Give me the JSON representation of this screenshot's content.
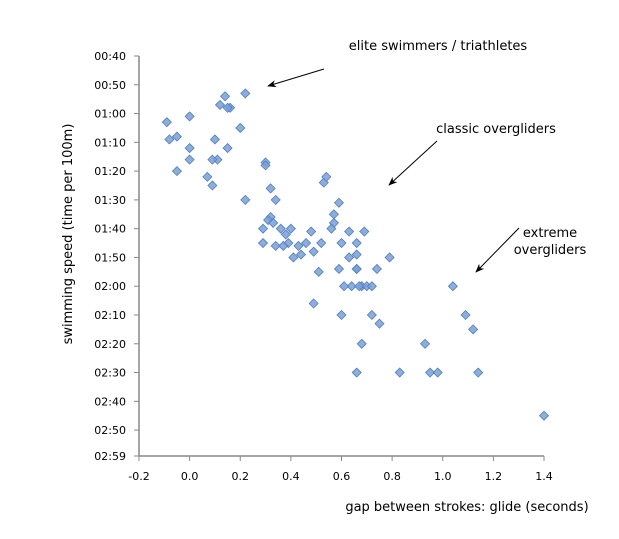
{
  "chart_data": {
    "type": "scatter",
    "title": "",
    "xlabel": "gap between strokes: glide (seconds)",
    "ylabel": "swimming speed (time per 100m)",
    "xlim": [
      -0.2,
      1.4
    ],
    "ylim_seconds": [
      40,
      179
    ],
    "y_inverted": true,
    "x_ticks": [
      -0.2,
      0,
      0.2,
      0.4,
      0.6,
      0.8,
      1,
      1.2,
      1.4
    ],
    "x_tick_labels": [
      "-0.2",
      "0.0",
      "0.2",
      "0.4",
      "0.6",
      "0.8",
      "1.0",
      "1.2",
      "1.4"
    ],
    "y_ticks_seconds": [
      40,
      50,
      60,
      70,
      80,
      90,
      100,
      110,
      120,
      130,
      140,
      150,
      160,
      170,
      179
    ],
    "y_tick_labels": [
      "00:40",
      "00:50",
      "01:00",
      "01:10",
      "01:20",
      "01:30",
      "01:40",
      "01:50",
      "02:00",
      "02:10",
      "02:20",
      "02:30",
      "02:40",
      "02:50",
      "02:59"
    ],
    "marker_color": "#7a9fd4",
    "marker_edge": "#4f7fc0",
    "grid": false,
    "annotations": [
      {
        "text": [
          "elite swimmers / triathletes"
        ],
        "points_to": [
          0.31,
          50
        ]
      },
      {
        "text": [
          "classic overgliders"
        ],
        "points_to": [
          0.79,
          87
        ]
      },
      {
        "text": [
          "extreme",
          "overgliders"
        ],
        "points_to": [
          1.13,
          117
        ]
      }
    ],
    "points": [
      [
        -0.09,
        63
      ],
      [
        -0.08,
        69
      ],
      [
        -0.05,
        68
      ],
      [
        -0.05,
        80
      ],
      [
        0.0,
        61
      ],
      [
        0.0,
        72
      ],
      [
        0.0,
        76
      ],
      [
        0.1,
        69
      ],
      [
        0.11,
        76
      ],
      [
        0.09,
        76
      ],
      [
        0.07,
        82
      ],
      [
        0.09,
        85
      ],
      [
        0.12,
        57
      ],
      [
        0.14,
        54
      ],
      [
        0.16,
        58
      ],
      [
        0.15,
        58
      ],
      [
        0.15,
        72
      ],
      [
        0.2,
        65
      ],
      [
        0.22,
        53
      ],
      [
        0.22,
        90
      ],
      [
        0.3,
        77
      ],
      [
        0.3,
        78
      ],
      [
        0.32,
        86
      ],
      [
        0.34,
        90
      ],
      [
        0.32,
        96
      ],
      [
        0.29,
        100
      ],
      [
        0.31,
        97
      ],
      [
        0.29,
        105
      ],
      [
        0.36,
        100
      ],
      [
        0.33,
        98
      ],
      [
        0.38,
        102
      ],
      [
        0.34,
        106
      ],
      [
        0.39,
        105
      ],
      [
        0.4,
        100
      ],
      [
        0.43,
        106
      ],
      [
        0.37,
        106
      ],
      [
        0.41,
        110
      ],
      [
        0.44,
        109
      ],
      [
        0.48,
        101
      ],
      [
        0.49,
        108
      ],
      [
        0.46,
        105
      ],
      [
        0.53,
        84
      ],
      [
        0.54,
        82
      ],
      [
        0.59,
        91
      ],
      [
        0.57,
        95
      ],
      [
        0.57,
        98
      ],
      [
        0.56,
        100
      ],
      [
        0.6,
        105
      ],
      [
        0.63,
        101
      ],
      [
        0.63,
        110
      ],
      [
        0.66,
        105
      ],
      [
        0.69,
        101
      ],
      [
        0.66,
        114
      ],
      [
        0.66,
        109
      ],
      [
        0.68,
        120
      ],
      [
        0.64,
        120
      ],
      [
        0.59,
        114
      ],
      [
        0.61,
        120
      ],
      [
        0.52,
        105
      ],
      [
        0.51,
        115
      ],
      [
        0.49,
        126
      ],
      [
        0.6,
        130
      ],
      [
        0.67,
        120
      ],
      [
        0.66,
        114
      ],
      [
        0.7,
        120
      ],
      [
        0.72,
        120
      ],
      [
        0.74,
        114
      ],
      [
        0.72,
        130
      ],
      [
        0.75,
        133
      ],
      [
        0.68,
        140
      ],
      [
        0.66,
        150
      ],
      [
        0.79,
        110
      ],
      [
        0.83,
        150
      ],
      [
        0.93,
        140
      ],
      [
        0.95,
        150
      ],
      [
        0.98,
        150
      ],
      [
        1.04,
        120
      ],
      [
        1.09,
        130
      ],
      [
        1.12,
        135
      ],
      [
        1.14,
        150
      ],
      [
        1.4,
        165
      ]
    ]
  }
}
